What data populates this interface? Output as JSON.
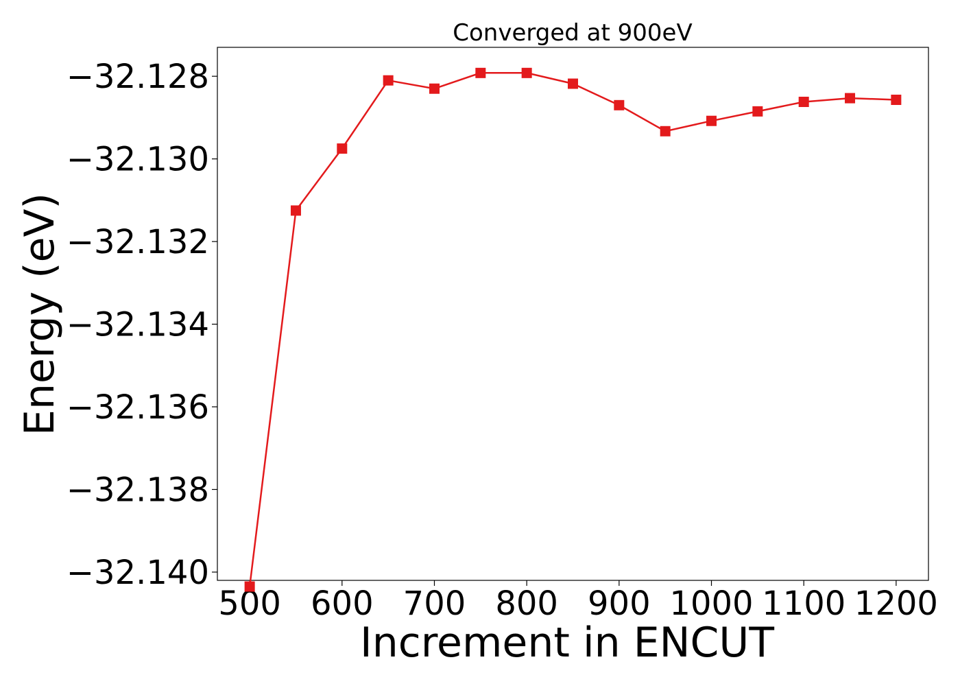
{
  "chart_data": {
    "type": "line",
    "title": "Converged at 900eV",
    "xlabel": "Increment in ENCUT",
    "ylabel": "Energy (eV)",
    "x": [
      500,
      550,
      600,
      650,
      700,
      750,
      800,
      850,
      900,
      950,
      1000,
      1050,
      1100,
      1150,
      1200
    ],
    "series": [
      {
        "values": [
          -32.14035,
          -32.13125,
          -32.12975,
          -32.1281,
          -32.1283,
          -32.12792,
          -32.12792,
          -32.12818,
          -32.1287,
          -32.12933,
          -32.12908,
          -32.12885,
          -32.12862,
          -32.12853,
          -32.12857
        ],
        "color": "#e31a1c",
        "marker": "square"
      }
    ],
    "xlim": [
      465,
      1235
    ],
    "ylim": [
      -32.1402,
      -32.1273
    ],
    "xticks": [
      500,
      600,
      700,
      800,
      900,
      1000,
      1100,
      1200
    ],
    "xtick_labels": [
      "500",
      "600",
      "700",
      "800",
      "900",
      "1000",
      "1100",
      "1200"
    ],
    "yticks": [
      -32.128,
      -32.13,
      -32.132,
      -32.134,
      -32.136,
      -32.138,
      -32.14
    ],
    "ytick_labels": [
      "−32.128",
      "−32.130",
      "−32.132",
      "−32.134",
      "−32.136",
      "−32.138",
      "−32.140"
    ],
    "grid": false,
    "legend": "none"
  }
}
